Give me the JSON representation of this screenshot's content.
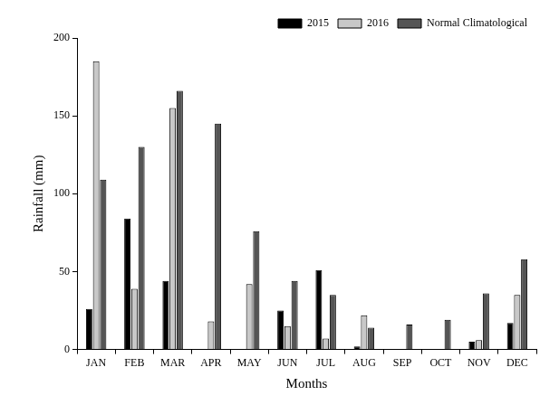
{
  "chart_data": {
    "type": "bar",
    "x_label": "Months",
    "y_label": "Rainfall (mm)",
    "categories": [
      "JAN",
      "FEB",
      "MAR",
      "APR",
      "MAY",
      "JUN",
      "JUL",
      "AUG",
      "SEP",
      "OCT",
      "NOV",
      "DEC"
    ],
    "series": [
      {
        "name": "2015",
        "color": "#000000",
        "values": [
          26,
          84,
          44,
          0,
          0,
          25,
          51,
          2,
          0,
          0,
          5,
          17
        ]
      },
      {
        "name": "2016",
        "color": "#c8c8c8",
        "values": [
          185,
          39,
          155,
          18,
          42,
          15,
          7,
          22,
          0,
          0,
          6,
          35
        ]
      },
      {
        "name": "Normal Climatological",
        "color": "#555555",
        "values": [
          109,
          130,
          166,
          145,
          76,
          44,
          35,
          14,
          16,
          19,
          36,
          58
        ]
      }
    ],
    "ylim": [
      0,
      200
    ],
    "yticks": [
      0,
      50,
      100,
      150,
      200
    ],
    "grid": false,
    "legend": "upper right"
  }
}
